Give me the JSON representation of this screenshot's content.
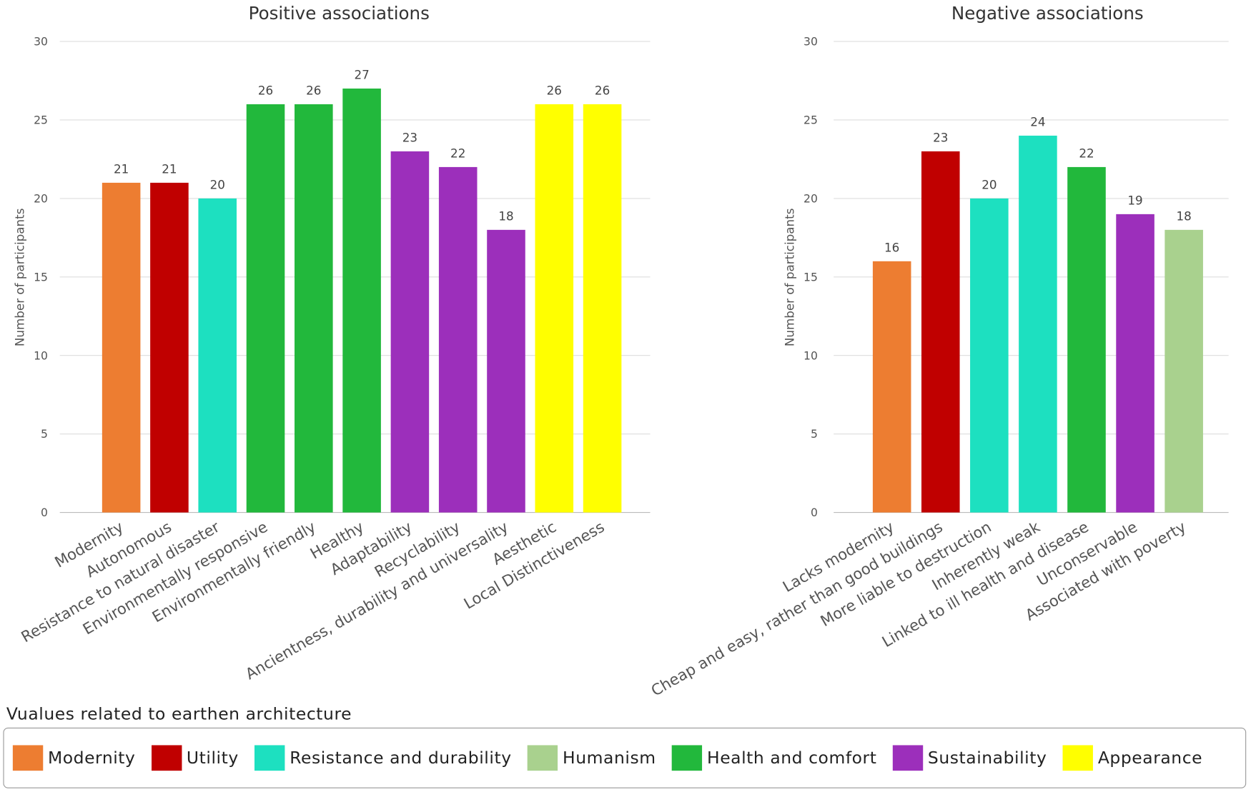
{
  "chart_data": [
    {
      "type": "bar",
      "title": "Positive associations",
      "ylabel": "Number of participants",
      "ylim": [
        0,
        30
      ],
      "yticks": [
        0,
        5,
        10,
        15,
        20,
        25,
        30
      ],
      "grid": true,
      "categories": [
        "Modernity",
        "Autonomous",
        "Resistance to natural disaster",
        "Environmentally responsive",
        "Environmentally friendly",
        "Healthy",
        "Adaptability",
        "Recyclability",
        "Ancientness, durability and universality",
        "Aesthetic",
        "Local Distinctiveness"
      ],
      "values": [
        21,
        21,
        20,
        26,
        26,
        27,
        23,
        22,
        18,
        26,
        26
      ],
      "groups": [
        "Modernity",
        "Utility",
        "Resistance and durability",
        "Health and comfort",
        "Health and comfort",
        "Health and comfort",
        "Sustainability",
        "Sustainability",
        "Sustainability",
        "Appearance",
        "Appearance"
      ]
    },
    {
      "type": "bar",
      "title": "Negative associations",
      "ylabel": "Number of participants",
      "ylim": [
        0,
        30
      ],
      "yticks": [
        0,
        5,
        10,
        15,
        20,
        25,
        30
      ],
      "grid": true,
      "categories": [
        "Lacks modernity",
        "Cheap and easy, rather than good buildings",
        "More liable to destruction",
        "Inherently weak",
        "Linked to ill health and disease",
        "Unconservable",
        "Associated with poverty"
      ],
      "values": [
        16,
        23,
        20,
        24,
        22,
        19,
        18
      ],
      "groups": [
        "Modernity",
        "Utility",
        "Resistance and durability",
        "Resistance and durability",
        "Health and comfort",
        "Sustainability",
        "Humanism"
      ]
    }
  ],
  "legend": {
    "title": "Vualues related to earthen architecture",
    "placement": "bottom",
    "items": [
      {
        "label": "Modernity",
        "color": "#ED7D31"
      },
      {
        "label": "Utility",
        "color": "#C00000"
      },
      {
        "label": "Resistance and durability",
        "color": "#1DE0C0"
      },
      {
        "label": "Humanism",
        "color": "#A9D18E"
      },
      {
        "label": "Health and comfort",
        "color": "#22B83C"
      },
      {
        "label": "Sustainability",
        "color": "#9C2FBB"
      },
      {
        "label": "Appearance",
        "color": "#FFFF00"
      }
    ]
  }
}
